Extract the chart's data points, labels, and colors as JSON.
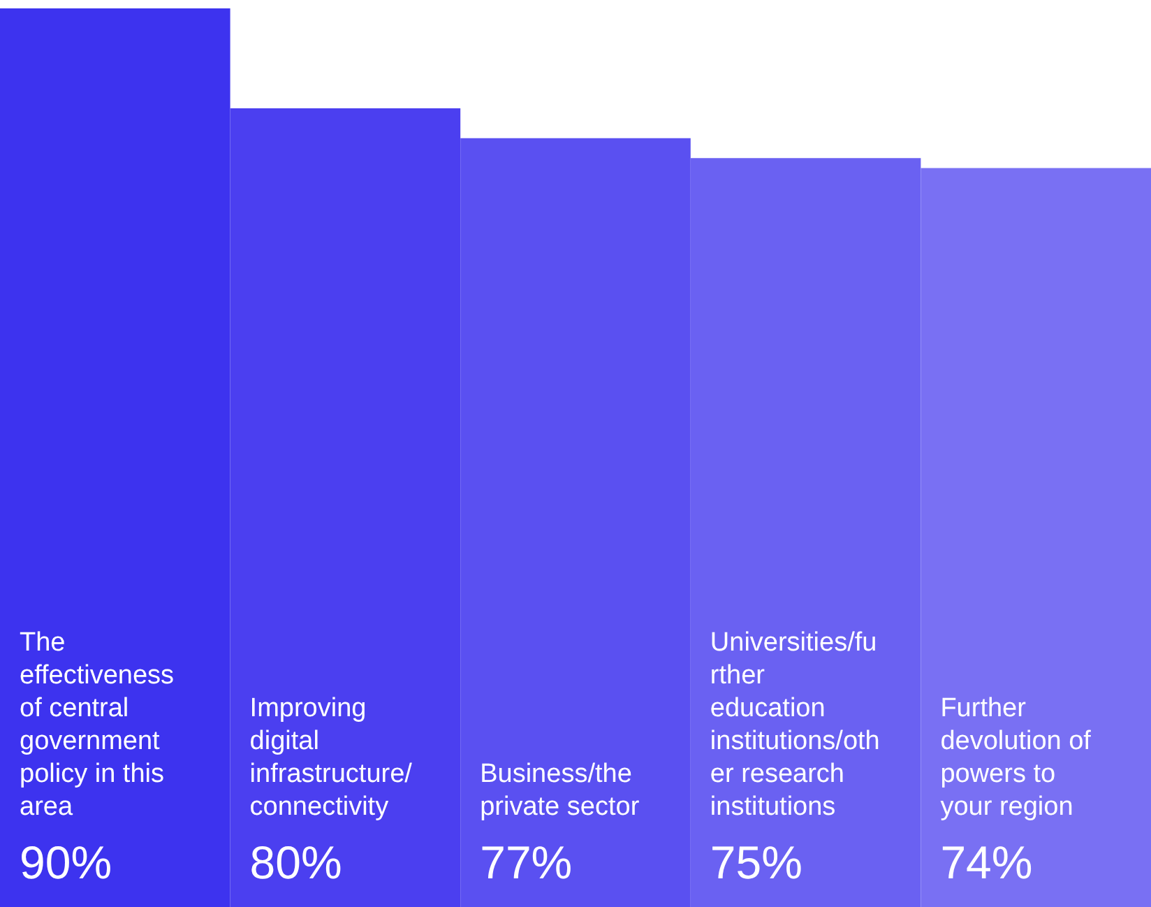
{
  "chart_data": {
    "type": "bar",
    "categories": [
      "The effectiveness of central government policy in this area",
      "Improving digital infrastructure/ connectivity",
      "Business/the private sector",
      "Universities/further education institutions/other research institutions",
      "Further devolution of powers to your region"
    ],
    "values": [
      90,
      80,
      77,
      75,
      74
    ],
    "value_labels": [
      "90%",
      "80%",
      "77%",
      "75%",
      "74%"
    ],
    "colors": [
      "#3d33ef",
      "#4b3ff0",
      "#5a50f1",
      "#6a61f2",
      "#7970f3"
    ]
  }
}
